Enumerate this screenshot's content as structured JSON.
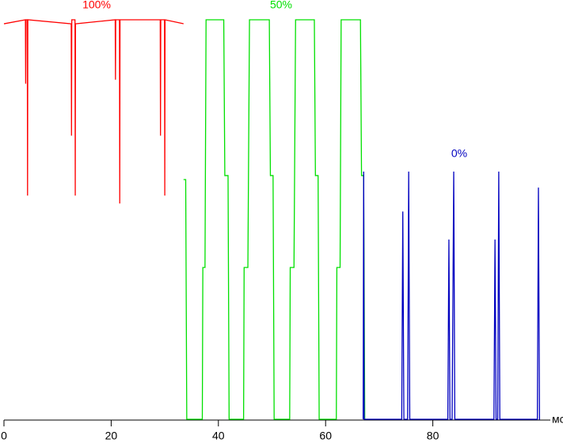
{
  "chart_data": {
    "type": "line",
    "x_label": "мс",
    "xlim": [
      0,
      100
    ],
    "xticks": [
      0,
      20,
      40,
      60,
      80
    ],
    "ylim": [
      0,
      100
    ],
    "series": [
      {
        "name": "100%",
        "color": "#ff0000",
        "x": [
          0,
          4.0,
          4.05,
          4.1,
          4.35,
          4.4,
          4.45,
          12.55,
          12.6,
          12.65,
          13.25,
          13.3,
          13.35,
          20.75,
          20.8,
          20.85,
          21.55,
          21.6,
          21.65,
          29.15,
          29.2,
          29.25,
          29.95,
          30.0,
          30.05,
          33.5
        ],
        "values": [
          99,
          100,
          84,
          100,
          100,
          56,
          100,
          99,
          71,
          100,
          100,
          56,
          99,
          100,
          85,
          100,
          100,
          54,
          100,
          100,
          71,
          100,
          100,
          56,
          100,
          99
        ]
      },
      {
        "name": "50%",
        "color": "#00e000",
        "x": [
          33.5,
          33.9,
          34.1,
          37.0,
          37.1,
          37.5,
          37.7,
          41.0,
          41.2,
          41.8,
          42.0,
          44.7,
          44.8,
          45.5,
          45.8,
          49.5,
          49.7,
          50.2,
          50.4,
          53.3,
          53.4,
          54.1,
          54.4,
          57.9,
          58.1,
          58.6,
          58.8,
          62.0,
          62.1,
          62.7,
          62.9,
          66.5,
          66.7,
          67.1,
          67.3
        ],
        "values": [
          60,
          60,
          0,
          0,
          38,
          38,
          100,
          100,
          61,
          61,
          0,
          0,
          38,
          38,
          100,
          100,
          61,
          61,
          0,
          0,
          38,
          38,
          100,
          100,
          61,
          61,
          0,
          0,
          38,
          38,
          100,
          100,
          61,
          61,
          0
        ]
      },
      {
        "name": "0%",
        "color": "#0000c0",
        "x": [
          67.0,
          67.1,
          67.2,
          74.2,
          74.4,
          74.6,
          75.3,
          75.5,
          75.7,
          82.8,
          83.0,
          83.2,
          83.6,
          83.9,
          84.1,
          91.4,
          91.6,
          91.8,
          92.1,
          92.3,
          92.5,
          99.5,
          99.7,
          99.9,
          100
        ],
        "values": [
          0,
          62,
          0,
          0,
          52,
          0,
          0,
          62,
          0,
          0,
          45,
          0,
          0,
          62,
          0,
          0,
          45,
          0,
          0,
          62,
          0,
          0,
          58,
          0,
          0
        ]
      }
    ]
  }
}
